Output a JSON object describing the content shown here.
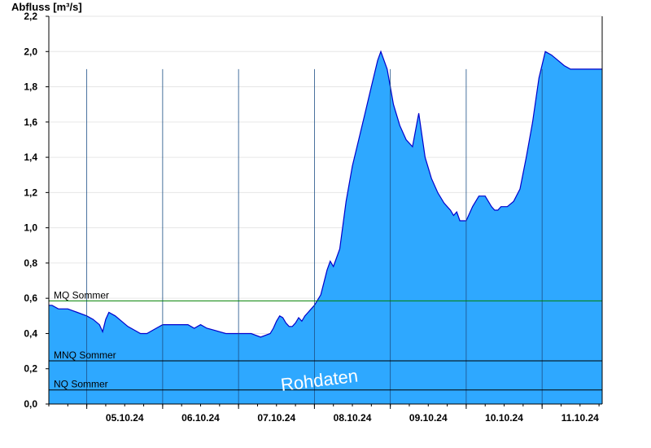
{
  "chart_data": {
    "type": "area",
    "ylabel": "Abfluss [m³/s]",
    "xlabel": "",
    "ylim": [
      0,
      2.2
    ],
    "yticks": [
      "0,0",
      "0,2",
      "0,4",
      "0,6",
      "0,8",
      "1,0",
      "1,2",
      "1,4",
      "1,6",
      "1,8",
      "2,0",
      "2,2"
    ],
    "xlim": [
      "2024-10-04T12:00",
      "2024-10-11T19:00"
    ],
    "day_labels": [
      "05.10.24",
      "06.10.24",
      "07.10.24",
      "08.10.24",
      "09.10.24",
      "10.10.24",
      "11.10.24"
    ],
    "fill_color": "#2ea8ff",
    "line_color": "#0000cc",
    "grid": true,
    "reference_lines": [
      {
        "label": "MQ Sommer",
        "value": 0.585,
        "color": "#008000"
      },
      {
        "label": "MNQ Sommer",
        "value": 0.245,
        "color": "#000000"
      },
      {
        "label": "NQ Sommer",
        "value": 0.08,
        "color": "#000000"
      }
    ],
    "watermark": "Rohdaten",
    "series": [
      {
        "x": [
          "2024-10-04T12:00",
          "2024-10-04T13:00",
          "2024-10-04T15:00",
          "2024-10-04T18:00",
          "2024-10-04T21:00",
          "2024-10-05T00:00",
          "2024-10-05T02:00",
          "2024-10-05T04:00",
          "2024-10-05T05:00",
          "2024-10-05T06:00",
          "2024-10-05T07:00",
          "2024-10-05T09:00",
          "2024-10-05T11:00",
          "2024-10-05T13:00",
          "2024-10-05T15:00",
          "2024-10-05T17:00",
          "2024-10-05T19:00",
          "2024-10-05T21:00",
          "2024-10-06T00:00",
          "2024-10-06T04:00",
          "2024-10-06T06:00",
          "2024-10-06T08:00",
          "2024-10-06T10:00",
          "2024-10-06T12:00",
          "2024-10-06T14:00",
          "2024-10-06T16:00",
          "2024-10-06T20:00",
          "2024-10-07T00:00",
          "2024-10-07T04:00",
          "2024-10-07T07:00",
          "2024-10-07T10:00",
          "2024-10-07T11:00",
          "2024-10-07T12:00",
          "2024-10-07T13:00",
          "2024-10-07T14:00",
          "2024-10-07T15:00",
          "2024-10-07T16:00",
          "2024-10-07T17:00",
          "2024-10-07T18:00",
          "2024-10-07T19:00",
          "2024-10-07T20:00",
          "2024-10-07T21:00",
          "2024-10-07T22:00",
          "2024-10-08T00:00",
          "2024-10-08T02:00",
          "2024-10-08T03:00",
          "2024-10-08T04:00",
          "2024-10-08T05:00",
          "2024-10-08T06:00",
          "2024-10-08T08:00",
          "2024-10-08T10:00",
          "2024-10-08T12:00",
          "2024-10-08T14:00",
          "2024-10-08T16:00",
          "2024-10-08T18:00",
          "2024-10-08T20:00",
          "2024-10-08T21:00",
          "2024-10-08T23:00",
          "2024-10-09T01:00",
          "2024-10-09T03:00",
          "2024-10-09T05:00",
          "2024-10-09T07:00",
          "2024-10-09T09:00",
          "2024-10-09T11:00",
          "2024-10-09T13:00",
          "2024-10-09T15:00",
          "2024-10-09T17:00",
          "2024-10-09T19:00",
          "2024-10-09T20:00",
          "2024-10-09T21:00",
          "2024-10-09T22:00",
          "2024-10-10T00:00",
          "2024-10-10T02:00",
          "2024-10-10T04:00",
          "2024-10-10T06:00",
          "2024-10-10T08:00",
          "2024-10-10T09:00",
          "2024-10-10T10:00",
          "2024-10-10T11:00",
          "2024-10-10T12:00",
          "2024-10-10T13:00",
          "2024-10-10T15:00",
          "2024-10-10T17:00",
          "2024-10-10T19:00",
          "2024-10-10T21:00",
          "2024-10-10T23:00",
          "2024-10-11T01:00",
          "2024-10-11T03:00",
          "2024-10-11T05:00",
          "2024-10-11T07:00",
          "2024-10-11T09:00",
          "2024-10-11T11:00",
          "2024-10-11T13:00",
          "2024-10-11T14:00",
          "2024-10-11T15:00",
          "2024-10-11T16:00",
          "2024-10-11T17:00",
          "2024-10-11T18:00",
          "2024-10-11T19:00"
        ],
        "y": [
          0.56,
          0.56,
          0.54,
          0.54,
          0.52,
          0.5,
          0.48,
          0.45,
          0.41,
          0.48,
          0.52,
          0.5,
          0.47,
          0.44,
          0.42,
          0.4,
          0.4,
          0.42,
          0.45,
          0.45,
          0.45,
          0.45,
          0.43,
          0.45,
          0.43,
          0.42,
          0.4,
          0.4,
          0.4,
          0.38,
          0.4,
          0.43,
          0.47,
          0.5,
          0.49,
          0.46,
          0.44,
          0.44,
          0.46,
          0.49,
          0.47,
          0.5,
          0.52,
          0.56,
          0.62,
          0.69,
          0.76,
          0.81,
          0.78,
          0.88,
          1.15,
          1.35,
          1.5,
          1.65,
          1.8,
          1.95,
          2.0,
          1.9,
          1.7,
          1.58,
          1.5,
          1.46,
          1.65,
          1.4,
          1.28,
          1.2,
          1.14,
          1.1,
          1.07,
          1.09,
          1.04,
          1.04,
          1.12,
          1.18,
          1.18,
          1.12,
          1.1,
          1.1,
          1.12,
          1.12,
          1.12,
          1.15,
          1.22,
          1.4,
          1.6,
          1.85,
          2.0,
          1.98,
          1.95,
          1.92,
          1.9,
          1.9,
          1.9,
          1.9,
          1.9,
          1.9,
          1.9,
          1.9,
          1.9
        ]
      }
    ]
  }
}
